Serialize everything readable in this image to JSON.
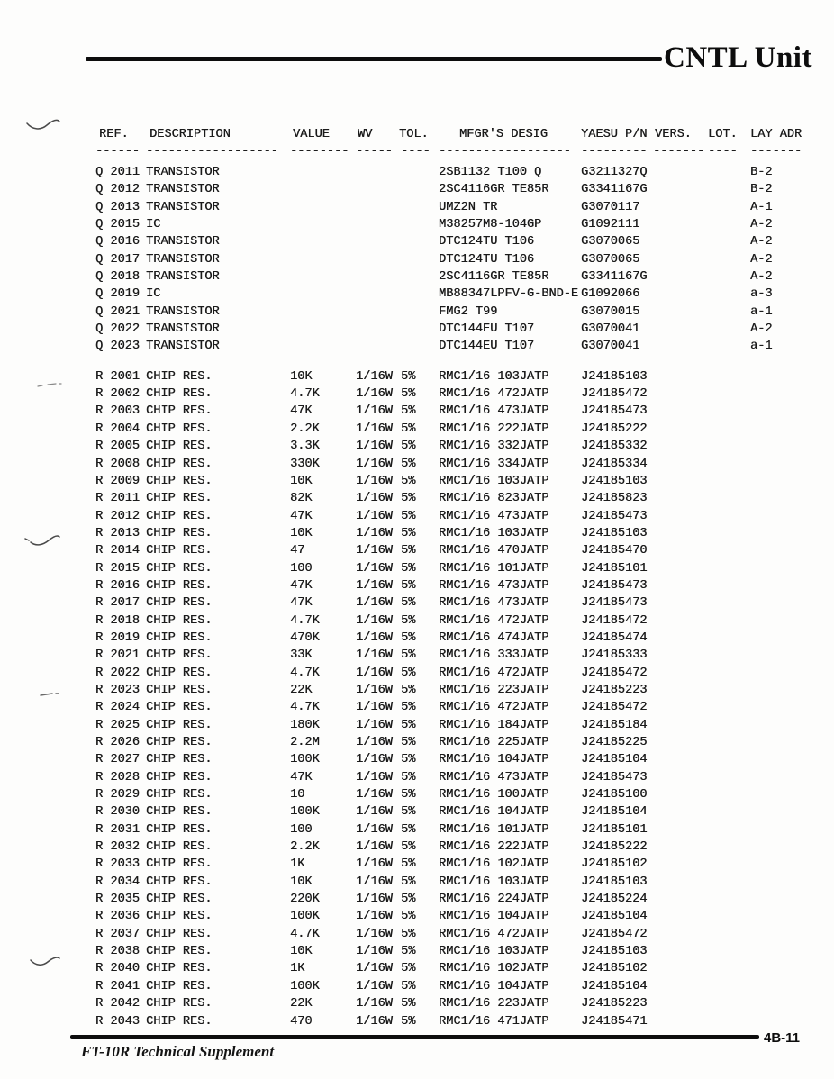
{
  "page": {
    "title": "CNTL Unit",
    "footer": {
      "doc_title": "FT-10R  Technical Supplement",
      "page_number": "4B-11"
    }
  },
  "table": {
    "columns": [
      {
        "key": "ref",
        "label": "REF.",
        "dashes": "------"
      },
      {
        "key": "description",
        "label": "DESCRIPTION",
        "dashes": "------------------"
      },
      {
        "key": "value",
        "label": "VALUE",
        "dashes": "--------"
      },
      {
        "key": "wv",
        "label": "WV",
        "dashes": "-----"
      },
      {
        "key": "tol",
        "label": "TOL.",
        "dashes": "----"
      },
      {
        "key": "mfgr-desig",
        "label": "MFGR'S DESIG",
        "dashes": "------------------"
      },
      {
        "key": "yaesu-pn",
        "label": "YAESU P/N",
        "dashes": "---------"
      },
      {
        "key": "vers",
        "label": "VERS.",
        "dashes": "-------"
      },
      {
        "key": "lot",
        "label": "LOT.",
        "dashes": "----"
      },
      {
        "key": "lay-adr",
        "label": "LAY ADR",
        "dashes": "-------"
      }
    ],
    "q_rows": [
      [
        "Q 2011",
        "TRANSISTOR",
        "",
        "",
        "",
        "2SB1132 T100 Q",
        "G3211327Q",
        "",
        "",
        "B-2"
      ],
      [
        "Q 2012",
        "TRANSISTOR",
        "",
        "",
        "",
        "2SC4116GR TE85R",
        "G3341167G",
        "",
        "",
        "B-2"
      ],
      [
        "Q 2013",
        "TRANSISTOR",
        "",
        "",
        "",
        "UMZ2N TR",
        "G3070117",
        "",
        "",
        "A-1"
      ],
      [
        "Q 2015",
        "IC",
        "",
        "",
        "",
        "M38257M8-104GP",
        "G1092111",
        "",
        "",
        "A-2"
      ],
      [
        "Q 2016",
        "TRANSISTOR",
        "",
        "",
        "",
        "DTC124TU T106",
        "G3070065",
        "",
        "",
        "A-2"
      ],
      [
        "Q 2017",
        "TRANSISTOR",
        "",
        "",
        "",
        "DTC124TU T106",
        "G3070065",
        "",
        "",
        "A-2"
      ],
      [
        "Q 2018",
        "TRANSISTOR",
        "",
        "",
        "",
        "2SC4116GR TE85R",
        "G3341167G",
        "",
        "",
        "A-2"
      ],
      [
        "Q 2019",
        "IC",
        "",
        "",
        "",
        "MB88347LPFV-G-BND-E",
        "G1092066",
        "",
        "",
        "a-3"
      ],
      [
        "Q 2021",
        "TRANSISTOR",
        "",
        "",
        "",
        "FMG2 T99",
        "G3070015",
        "",
        "",
        "a-1"
      ],
      [
        "Q 2022",
        "TRANSISTOR",
        "",
        "",
        "",
        "DTC144EU T107",
        "G3070041",
        "",
        "",
        "A-2"
      ],
      [
        "Q 2023",
        "TRANSISTOR",
        "",
        "",
        "",
        "DTC144EU T107",
        "G3070041",
        "",
        "",
        "a-1"
      ]
    ],
    "r_rows": [
      [
        "R 2001",
        "CHIP RES.",
        "10K",
        "1/16W",
        "5%",
        "RMC1/16 103JATP",
        "J24185103",
        "",
        "",
        ""
      ],
      [
        "R 2002",
        "CHIP RES.",
        "4.7K",
        "1/16W",
        "5%",
        "RMC1/16 472JATP",
        "J24185472",
        "",
        "",
        ""
      ],
      [
        "R 2003",
        "CHIP RES.",
        "47K",
        "1/16W",
        "5%",
        "RMC1/16 473JATP",
        "J24185473",
        "",
        "",
        ""
      ],
      [
        "R 2004",
        "CHIP RES.",
        "2.2K",
        "1/16W",
        "5%",
        "RMC1/16 222JATP",
        "J24185222",
        "",
        "",
        ""
      ],
      [
        "R 2005",
        "CHIP RES.",
        "3.3K",
        "1/16W",
        "5%",
        "RMC1/16 332JATP",
        "J24185332",
        "",
        "",
        ""
      ],
      [
        "R 2008",
        "CHIP RES.",
        "330K",
        "1/16W",
        "5%",
        "RMC1/16 334JATP",
        "J24185334",
        "",
        "",
        ""
      ],
      [
        "R 2009",
        "CHIP RES.",
        "10K",
        "1/16W",
        "5%",
        "RMC1/16 103JATP",
        "J24185103",
        "",
        "",
        ""
      ],
      [
        "R 2011",
        "CHIP RES.",
        "82K",
        "1/16W",
        "5%",
        "RMC1/16 823JATP",
        "J24185823",
        "",
        "",
        ""
      ],
      [
        "R 2012",
        "CHIP RES.",
        "47K",
        "1/16W",
        "5%",
        "RMC1/16 473JATP",
        "J24185473",
        "",
        "",
        ""
      ],
      [
        "R 2013",
        "CHIP RES.",
        "10K",
        "1/16W",
        "5%",
        "RMC1/16 103JATP",
        "J24185103",
        "",
        "",
        ""
      ],
      [
        "R 2014",
        "CHIP RES.",
        "47",
        "1/16W",
        "5%",
        "RMC1/16 470JATP",
        "J24185470",
        "",
        "",
        ""
      ],
      [
        "R 2015",
        "CHIP RES.",
        "100",
        "1/16W",
        "5%",
        "RMC1/16 101JATP",
        "J24185101",
        "",
        "",
        ""
      ],
      [
        "R 2016",
        "CHIP RES.",
        "47K",
        "1/16W",
        "5%",
        "RMC1/16 473JATP",
        "J24185473",
        "",
        "",
        ""
      ],
      [
        "R 2017",
        "CHIP RES.",
        "47K",
        "1/16W",
        "5%",
        "RMC1/16 473JATP",
        "J24185473",
        "",
        "",
        ""
      ],
      [
        "R 2018",
        "CHIP RES.",
        "4.7K",
        "1/16W",
        "5%",
        "RMC1/16 472JATP",
        "J24185472",
        "",
        "",
        ""
      ],
      [
        "R 2019",
        "CHIP RES.",
        "470K",
        "1/16W",
        "5%",
        "RMC1/16 474JATP",
        "J24185474",
        "",
        "",
        ""
      ],
      [
        "R 2021",
        "CHIP RES.",
        "33K",
        "1/16W",
        "5%",
        "RMC1/16 333JATP",
        "J24185333",
        "",
        "",
        ""
      ],
      [
        "R 2022",
        "CHIP RES.",
        "4.7K",
        "1/16W",
        "5%",
        "RMC1/16 472JATP",
        "J24185472",
        "",
        "",
        ""
      ],
      [
        "R 2023",
        "CHIP RES.",
        "22K",
        "1/16W",
        "5%",
        "RMC1/16 223JATP",
        "J24185223",
        "",
        "",
        ""
      ],
      [
        "R 2024",
        "CHIP RES.",
        "4.7K",
        "1/16W",
        "5%",
        "RMC1/16 472JATP",
        "J24185472",
        "",
        "",
        ""
      ],
      [
        "R 2025",
        "CHIP RES.",
        "180K",
        "1/16W",
        "5%",
        "RMC1/16 184JATP",
        "J24185184",
        "",
        "",
        ""
      ],
      [
        "R 2026",
        "CHIP RES.",
        "2.2M",
        "1/16W",
        "5%",
        "RMC1/16 225JATP",
        "J24185225",
        "",
        "",
        ""
      ],
      [
        "R 2027",
        "CHIP RES.",
        "100K",
        "1/16W",
        "5%",
        "RMC1/16 104JATP",
        "J24185104",
        "",
        "",
        ""
      ],
      [
        "R 2028",
        "CHIP RES.",
        "47K",
        "1/16W",
        "5%",
        "RMC1/16 473JATP",
        "J24185473",
        "",
        "",
        ""
      ],
      [
        "R 2029",
        "CHIP RES.",
        "10",
        "1/16W",
        "5%",
        "RMC1/16 100JATP",
        "J24185100",
        "",
        "",
        ""
      ],
      [
        "R 2030",
        "CHIP RES.",
        "100K",
        "1/16W",
        "5%",
        "RMC1/16 104JATP",
        "J24185104",
        "",
        "",
        ""
      ],
      [
        "R 2031",
        "CHIP RES.",
        "100",
        "1/16W",
        "5%",
        "RMC1/16 101JATP",
        "J24185101",
        "",
        "",
        ""
      ],
      [
        "R 2032",
        "CHIP RES.",
        "2.2K",
        "1/16W",
        "5%",
        "RMC1/16 222JATP",
        "J24185222",
        "",
        "",
        ""
      ],
      [
        "R 2033",
        "CHIP RES.",
        "1K",
        "1/16W",
        "5%",
        "RMC1/16 102JATP",
        "J24185102",
        "",
        "",
        ""
      ],
      [
        "R 2034",
        "CHIP RES.",
        "10K",
        "1/16W",
        "5%",
        "RMC1/16 103JATP",
        "J24185103",
        "",
        "",
        ""
      ],
      [
        "R 2035",
        "CHIP RES.",
        "220K",
        "1/16W",
        "5%",
        "RMC1/16 224JATP",
        "J24185224",
        "",
        "",
        ""
      ],
      [
        "R 2036",
        "CHIP RES.",
        "100K",
        "1/16W",
        "5%",
        "RMC1/16 104JATP",
        "J24185104",
        "",
        "",
        ""
      ],
      [
        "R 2037",
        "CHIP RES.",
        "4.7K",
        "1/16W",
        "5%",
        "RMC1/16 472JATP",
        "J24185472",
        "",
        "",
        ""
      ],
      [
        "R 2038",
        "CHIP RES.",
        "10K",
        "1/16W",
        "5%",
        "RMC1/16 103JATP",
        "J24185103",
        "",
        "",
        ""
      ],
      [
        "R 2040",
        "CHIP RES.",
        "1K",
        "1/16W",
        "5%",
        "RMC1/16 102JATP",
        "J24185102",
        "",
        "",
        ""
      ],
      [
        "R 2041",
        "CHIP RES.",
        "100K",
        "1/16W",
        "5%",
        "RMC1/16 104JATP",
        "J24185104",
        "",
        "",
        ""
      ],
      [
        "R 2042",
        "CHIP RES.",
        "22K",
        "1/16W",
        "5%",
        "RMC1/16 223JATP",
        "J24185223",
        "",
        "",
        ""
      ],
      [
        "R 2043",
        "CHIP RES.",
        "470",
        "1/16W",
        "5%",
        "RMC1/16 471JATP",
        "J24185471",
        "",
        "",
        ""
      ]
    ]
  }
}
